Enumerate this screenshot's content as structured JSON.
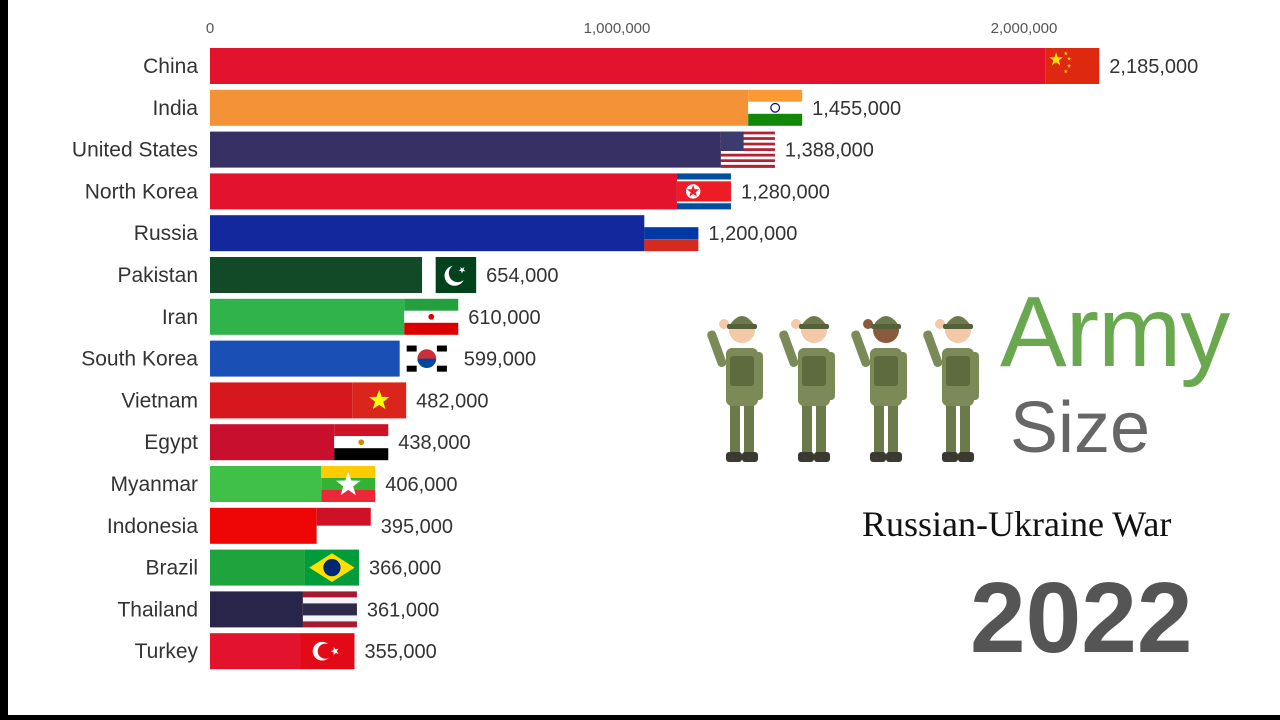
{
  "title": {
    "line1": "Army",
    "line2": "Size",
    "subtitle": "Russian-Ukraine War",
    "year": "2022"
  },
  "chart_data": {
    "type": "bar",
    "orientation": "horizontal",
    "title": "Army Size",
    "xlabel": "",
    "ylabel": "",
    "xlim": [
      0,
      2185000
    ],
    "ticks": [
      {
        "value": 0,
        "label": "0"
      },
      {
        "value": 1000000,
        "label": "1,000,000"
      },
      {
        "value": 2000000,
        "label": "2,000,000"
      }
    ],
    "axis_position": "top",
    "grid": false,
    "legend": "none",
    "categories": [
      "China",
      "India",
      "United States",
      "North Korea",
      "Russia",
      "Pakistan",
      "Iran",
      "South Korea",
      "Vietnam",
      "Egypt",
      "Myanmar",
      "Indonesia",
      "Brazil",
      "Thailand",
      "Turkey"
    ],
    "values": [
      2185000,
      1455000,
      1388000,
      1280000,
      1200000,
      654000,
      610000,
      599000,
      482000,
      438000,
      406000,
      395000,
      366000,
      361000,
      355000
    ],
    "value_labels": [
      "2,185,000",
      "1,455,000",
      "1,388,000",
      "1,280,000",
      "1,200,000",
      "654,000",
      "610,000",
      "599,000",
      "482,000",
      "438,000",
      "406,000",
      "395,000",
      "366,000",
      "361,000",
      "355,000"
    ],
    "colors": [
      "#e3122d",
      "#f39236",
      "#363064",
      "#e3122d",
      "#14289e",
      "#124a28",
      "#30b34a",
      "#1a4fb5",
      "#d6181e",
      "#c8102e",
      "#40c048",
      "#ee0606",
      "#1fa33c",
      "#28244a",
      "#e3122d"
    ],
    "flags": [
      "china-flag",
      "india-flag",
      "us-flag",
      "north-korea-flag",
      "russia-flag",
      "pakistan-flag",
      "iran-flag",
      "south-korea-flag",
      "vietnam-flag",
      "egypt-flag",
      "myanmar-flag",
      "indonesia-flag",
      "brazil-flag",
      "thailand-flag",
      "turkey-flag"
    ]
  },
  "decorations": {
    "soldiers": [
      "saluting-soldier-icon",
      "saluting-soldier-icon",
      "saluting-soldier-icon",
      "saluting-soldier-icon"
    ]
  }
}
